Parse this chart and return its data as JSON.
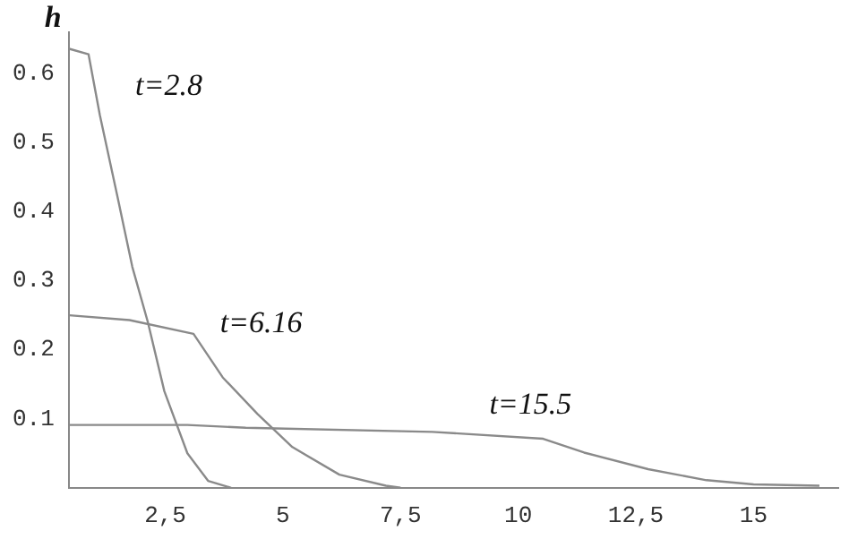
{
  "chart_data": {
    "type": "line",
    "ylabel": "h",
    "xlim": [
      0.45,
      16.8
    ],
    "ylim": [
      0,
      0.66
    ],
    "xticks": [
      {
        "value": 2.5,
        "label": "2,5"
      },
      5,
      {
        "value": 7.5,
        "label": "7,5"
      },
      10,
      {
        "value": 12.5,
        "label": "12,5"
      },
      15
    ],
    "yticks": [
      0.1,
      0.2,
      0.3,
      0.4,
      0.5,
      0.6
    ],
    "grid": false,
    "legend": false,
    "marker": "none",
    "line_style": "solid",
    "series": [
      {
        "color": "#8a8a8a",
        "x": [
          0.46,
          0.87,
          1.11,
          1.49,
          1.8,
          2.13,
          2.48,
          2.97,
          3.41,
          3.9
        ],
        "values": [
          0.636,
          0.628,
          0.54,
          0.42,
          0.32,
          0.24,
          0.14,
          0.05,
          0.01,
          0
        ]
      },
      {
        "color": "#8a8a8a",
        "x": [
          0.46,
          1.74,
          3.1,
          3.72,
          4.46,
          5.2,
          6.2,
          7.19,
          7.5
        ],
        "values": [
          0.25,
          0.243,
          0.223,
          0.16,
          0.107,
          0.059,
          0.019,
          0.003,
          0
        ]
      },
      {
        "color": "#8a8a8a",
        "x": [
          0.46,
          2.97,
          4.21,
          8.18,
          10.53,
          11.4,
          12.76,
          14.0,
          15.0,
          16.4
        ],
        "values": [
          0.091,
          0.091,
          0.087,
          0.081,
          0.071,
          0.051,
          0.027,
          0.011,
          0.005,
          0.003
        ]
      }
    ],
    "annotations": [
      "t=2.8",
      "t=6.16",
      "t=15.5"
    ]
  }
}
